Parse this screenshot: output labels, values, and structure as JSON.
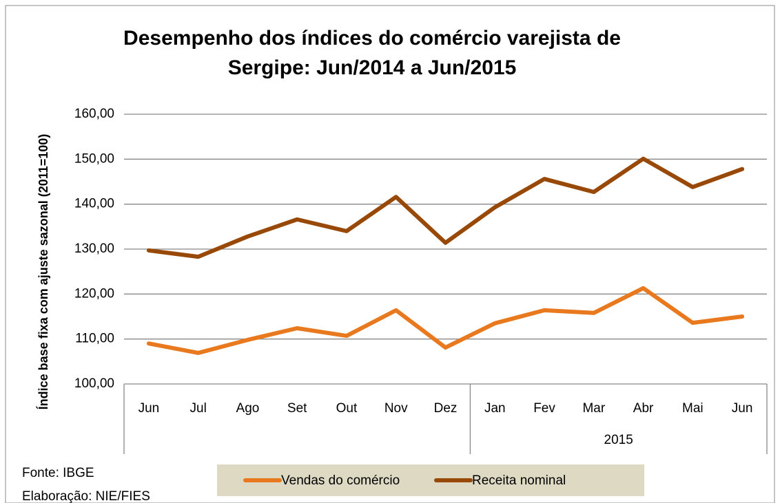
{
  "chart_data": {
    "type": "line",
    "title": [
      "Desempenho dos índices do comércio varejista de",
      "Sergipe: Jun/2014 a Jun/2015"
    ],
    "y_label": "Índice base fixa com ajuste sazonal (2011=100)",
    "categories": [
      "Jun",
      "Jul",
      "Ago",
      "Set",
      "Out",
      "Nov",
      "Dez",
      "Jan",
      "Fev",
      "Mar",
      "Abr",
      "Mai",
      "Jun"
    ],
    "category_groups": [
      {
        "name": null,
        "count": 7
      },
      {
        "name": "2015",
        "count": 6
      }
    ],
    "series": [
      {
        "name": "Vendas do comércio",
        "color": "#e8791e",
        "values": [
          109.0,
          106.9,
          109.8,
          112.4,
          110.7,
          116.4,
          108.1,
          113.5,
          116.4,
          115.8,
          121.3,
          113.6,
          115.0
        ]
      },
      {
        "name": "Receita nominal",
        "color": "#984807",
        "values": [
          129.7,
          128.3,
          132.8,
          136.6,
          134.0,
          141.6,
          131.4,
          139.3,
          145.6,
          142.7,
          150.1,
          143.8,
          147.8
        ]
      }
    ],
    "ylim": [
      100,
      160
    ],
    "yticks": [
      {
        "value": 100,
        "label": "100,00"
      },
      {
        "value": 110,
        "label": "110,00"
      },
      {
        "value": 120,
        "label": "120,00"
      },
      {
        "value": 130,
        "label": "130,00"
      },
      {
        "value": 140,
        "label": "140,00"
      },
      {
        "value": 150,
        "label": "150,00"
      },
      {
        "value": 160,
        "label": "160,00"
      }
    ],
    "grid": true,
    "legend": "bottom",
    "notes": [
      "Fonte: IBGE",
      "Elaboração: NIE/FIES"
    ]
  }
}
